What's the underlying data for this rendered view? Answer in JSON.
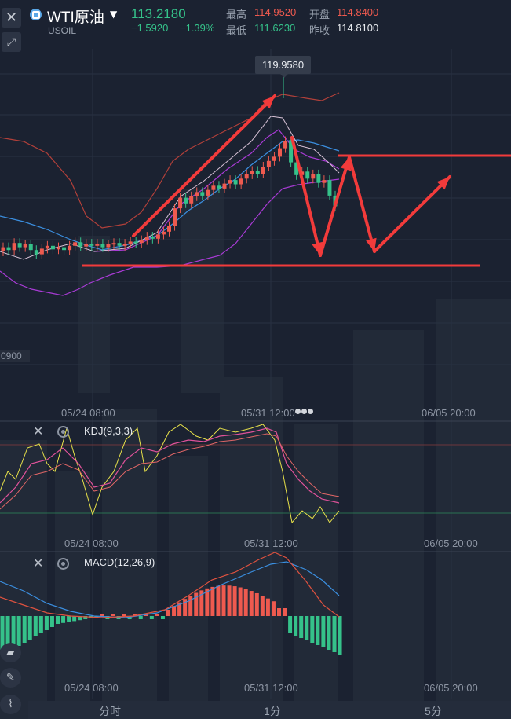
{
  "header": {
    "close_icon": "close-icon",
    "expand_icon": "expand-icon",
    "symbol_name": "WTI原油",
    "symbol_code": "USOIL",
    "last_price": "113.2180",
    "change": "−1.5920",
    "change_pct": "−1.39%",
    "high_label": "最高",
    "high_value": "114.9520",
    "open_label": "开盘",
    "open_value": "114.8400",
    "low_label": "最低",
    "low_value": "111.6230",
    "prev_close_label": "昨收",
    "prev_close_value": "114.8100"
  },
  "main_chart": {
    "peak_tag": "119.9580",
    "left_price_tag": "0900",
    "x_labels": [
      "05/24 08:00",
      "05/31 12:00",
      "06/05 20:00"
    ]
  },
  "kdj_panel": {
    "label": "KDJ(9,3,3)",
    "x_labels": [
      "05/24 08:00",
      "05/31 12:00",
      "06/05 20:00"
    ]
  },
  "macd_panel": {
    "label": "MACD(12,26,9)",
    "x_labels": [
      "05/24 08:00",
      "05/31 12:00",
      "06/05 20:00"
    ]
  },
  "timeframes": [
    "分时",
    "1分",
    "5分"
  ],
  "colors": {
    "up": "#ee5a4f",
    "down": "#35c28a",
    "background": "#1b2231",
    "annotation": "#f23b3b",
    "boll_mid": "#3b8fe0",
    "boll_band": "#b2403a",
    "ma_purple": "#a93bd6",
    "kdj_k": "#e8e24a",
    "kdj_d": "#e0529a",
    "macd_dif": "#3b8fe0",
    "macd_dea": "#e0523f"
  }
}
